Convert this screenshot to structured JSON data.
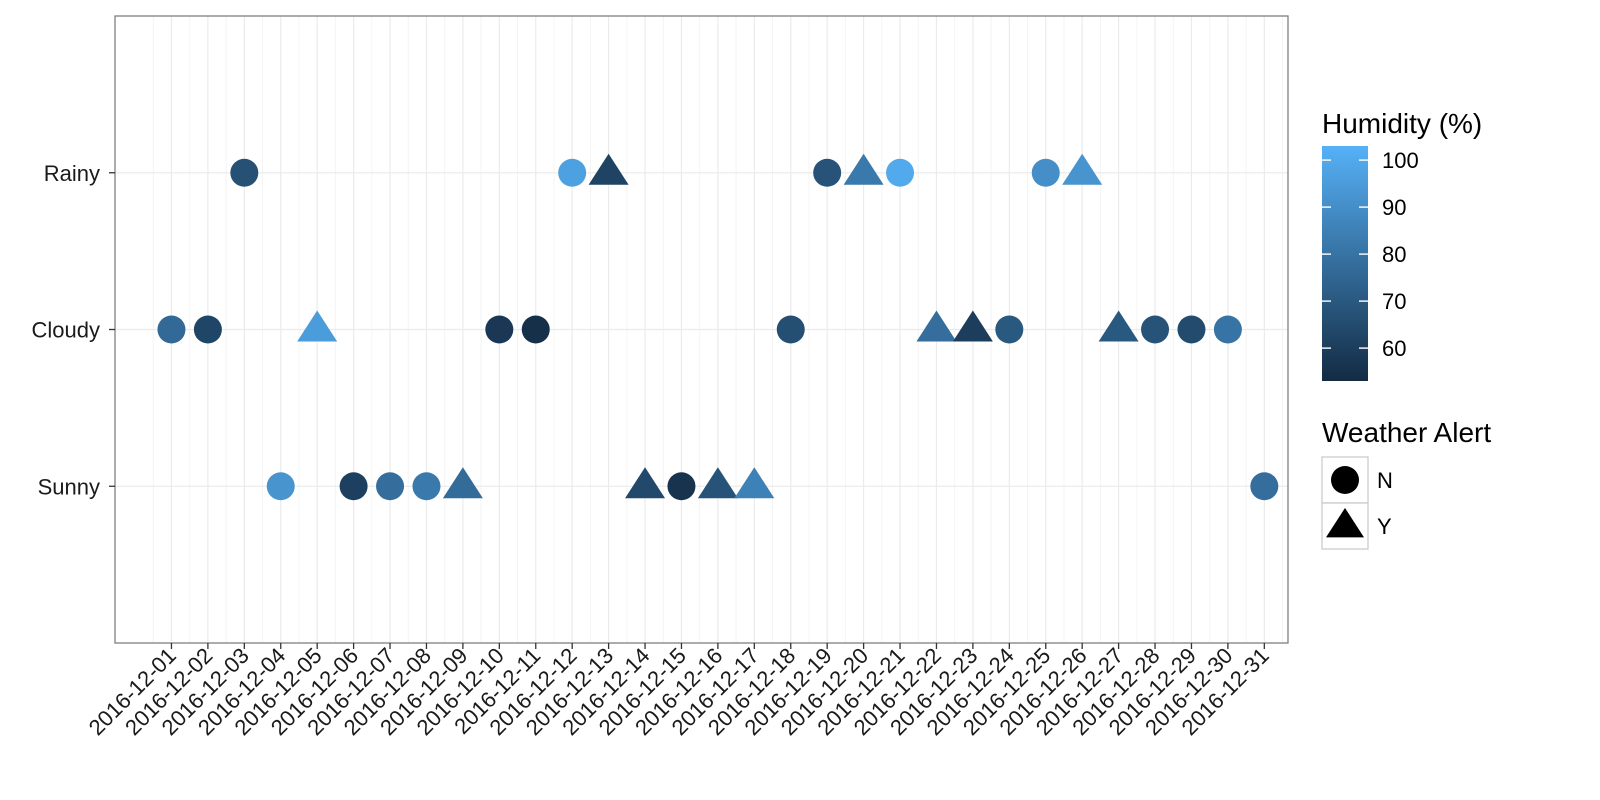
{
  "chart_data": {
    "type": "scatter",
    "title": "",
    "xlabel": "",
    "ylabel": "",
    "x_categories": [
      "2016-12-01",
      "2016-12-02",
      "2016-12-03",
      "2016-12-04",
      "2016-12-05",
      "2016-12-06",
      "2016-12-07",
      "2016-12-08",
      "2016-12-09",
      "2016-12-10",
      "2016-12-11",
      "2016-12-12",
      "2016-12-13",
      "2016-12-14",
      "2016-12-15",
      "2016-12-16",
      "2016-12-17",
      "2016-12-18",
      "2016-12-19",
      "2016-12-20",
      "2016-12-21",
      "2016-12-22",
      "2016-12-23",
      "2016-12-24",
      "2016-12-25",
      "2016-12-26",
      "2016-12-27",
      "2016-12-28",
      "2016-12-29",
      "2016-12-30",
      "2016-12-31"
    ],
    "y_categories": [
      "Sunny",
      "Cloudy",
      "Rainy"
    ],
    "grid": true,
    "legend_position": "right",
    "color_legend": {
      "title": "Humidity (%)",
      "ticks": [
        "60",
        "70",
        "80",
        "90",
        "100"
      ],
      "range": [
        53,
        103
      ],
      "low_color": "#132b43",
      "high_color": "#56b1f7"
    },
    "shape_legend": {
      "title": "Weather Alert",
      "items": [
        {
          "label": "N",
          "shape": "circle"
        },
        {
          "label": "Y",
          "shape": "triangle"
        }
      ]
    },
    "points": [
      {
        "x": "2016-12-01",
        "y": "Cloudy",
        "humidity": 76,
        "alert": "N"
      },
      {
        "x": "2016-12-02",
        "y": "Cloudy",
        "humidity": 63,
        "alert": "N"
      },
      {
        "x": "2016-12-03",
        "y": "Rainy",
        "humidity": 67,
        "alert": "N"
      },
      {
        "x": "2016-12-04",
        "y": "Sunny",
        "humidity": 92,
        "alert": "N"
      },
      {
        "x": "2016-12-05",
        "y": "Cloudy",
        "humidity": 95,
        "alert": "Y"
      },
      {
        "x": "2016-12-06",
        "y": "Sunny",
        "humidity": 61,
        "alert": "N"
      },
      {
        "x": "2016-12-07",
        "y": "Sunny",
        "humidity": 78,
        "alert": "N"
      },
      {
        "x": "2016-12-08",
        "y": "Sunny",
        "humidity": 82,
        "alert": "N"
      },
      {
        "x": "2016-12-09",
        "y": "Sunny",
        "humidity": 77,
        "alert": "Y"
      },
      {
        "x": "2016-12-10",
        "y": "Cloudy",
        "humidity": 58,
        "alert": "N"
      },
      {
        "x": "2016-12-11",
        "y": "Cloudy",
        "humidity": 55,
        "alert": "N"
      },
      {
        "x": "2016-12-12",
        "y": "Rainy",
        "humidity": 97,
        "alert": "N"
      },
      {
        "x": "2016-12-13",
        "y": "Rainy",
        "humidity": 62,
        "alert": "Y"
      },
      {
        "x": "2016-12-14",
        "y": "Sunny",
        "humidity": 64,
        "alert": "Y"
      },
      {
        "x": "2016-12-15",
        "y": "Sunny",
        "humidity": 56,
        "alert": "N"
      },
      {
        "x": "2016-12-16",
        "y": "Sunny",
        "humidity": 68,
        "alert": "Y"
      },
      {
        "x": "2016-12-17",
        "y": "Sunny",
        "humidity": 85,
        "alert": "Y"
      },
      {
        "x": "2016-12-18",
        "y": "Cloudy",
        "humidity": 66,
        "alert": "N"
      },
      {
        "x": "2016-12-19",
        "y": "Rainy",
        "humidity": 68,
        "alert": "N"
      },
      {
        "x": "2016-12-20",
        "y": "Rainy",
        "humidity": 82,
        "alert": "Y"
      },
      {
        "x": "2016-12-21",
        "y": "Rainy",
        "humidity": 100,
        "alert": "N"
      },
      {
        "x": "2016-12-22",
        "y": "Cloudy",
        "humidity": 78,
        "alert": "Y"
      },
      {
        "x": "2016-12-23",
        "y": "Cloudy",
        "humidity": 60,
        "alert": "Y"
      },
      {
        "x": "2016-12-24",
        "y": "Cloudy",
        "humidity": 70,
        "alert": "N"
      },
      {
        "x": "2016-12-25",
        "y": "Rainy",
        "humidity": 90,
        "alert": "N"
      },
      {
        "x": "2016-12-26",
        "y": "Rainy",
        "humidity": 92,
        "alert": "Y"
      },
      {
        "x": "2016-12-27",
        "y": "Cloudy",
        "humidity": 70,
        "alert": "Y"
      },
      {
        "x": "2016-12-28",
        "y": "Cloudy",
        "humidity": 68,
        "alert": "N"
      },
      {
        "x": "2016-12-29",
        "y": "Cloudy",
        "humidity": 65,
        "alert": "N"
      },
      {
        "x": "2016-12-30",
        "y": "Cloudy",
        "humidity": 80,
        "alert": "N"
      },
      {
        "x": "2016-12-31",
        "y": "Sunny",
        "humidity": 78,
        "alert": "N"
      }
    ]
  }
}
